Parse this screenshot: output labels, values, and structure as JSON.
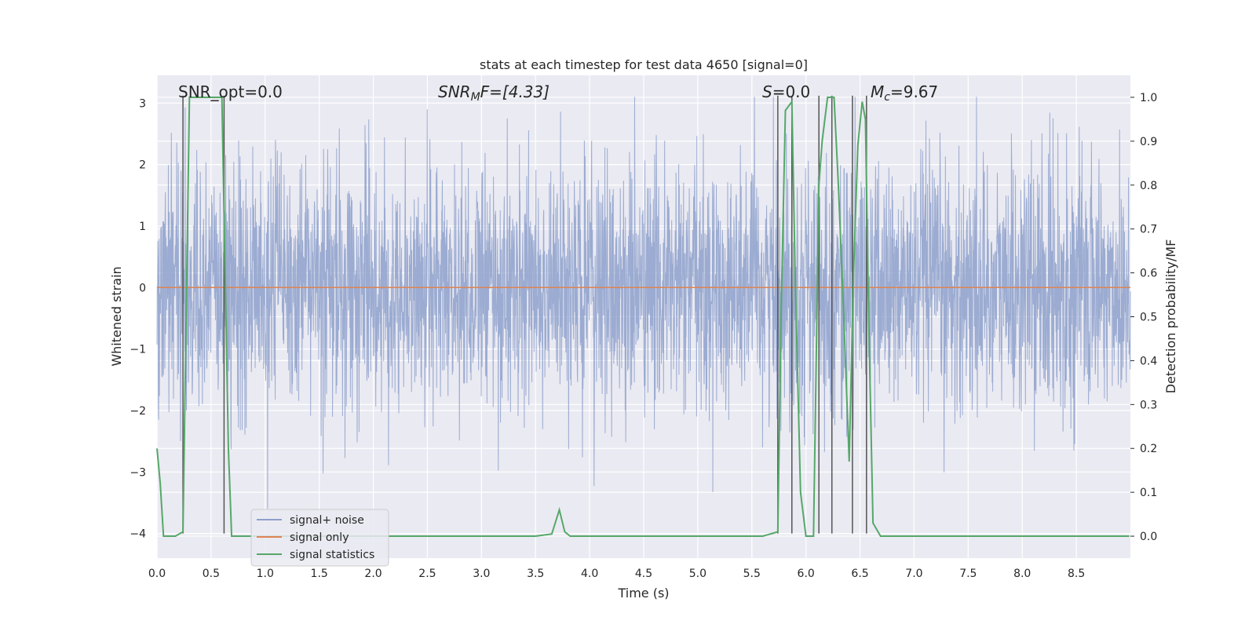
{
  "chart_data": {
    "type": "line",
    "title": "stats at each timestep for test data 4650 [signal=0]",
    "xlabel": "Time (s)",
    "ylabel": "Whitened strain",
    "y2label": "Detection probability/MF",
    "xlim": [
      0,
      9.0
    ],
    "ylim": [
      -4.4,
      3.45
    ],
    "y2lim": [
      -0.05,
      1.05
    ],
    "xticks": [
      0.0,
      0.5,
      1.0,
      1.5,
      2.0,
      2.5,
      3.0,
      3.5,
      4.0,
      4.5,
      5.0,
      5.5,
      6.0,
      6.5,
      7.0,
      7.5,
      8.0,
      8.5
    ],
    "yticks": [
      3,
      2,
      1,
      0,
      -1,
      -2,
      -3,
      -4
    ],
    "y2ticks": [
      1.0,
      0.9,
      0.8,
      0.7,
      0.6,
      0.5,
      0.4,
      0.3,
      0.2,
      0.1,
      0.0
    ],
    "grid": true,
    "legend_position": "lower-left",
    "annotations": {
      "snr_opt": "SNR_opt=0.0",
      "snr_mf_main": "SNR",
      "snr_mf_sub": "M",
      "snr_mf_rest": "F=[4.33]",
      "s_stat": "=0.0",
      "s_symbol": "S",
      "mc_main": "M",
      "mc_sub": "c",
      "mc_rest": "=9.67"
    },
    "noise": {
      "description_free": true,
      "sigma": 1.0,
      "clip": [
        -3.7,
        3.1
      ],
      "n_samples": 3600
    },
    "vlines_x": [
      0.24,
      0.62,
      5.74,
      5.87,
      6.12,
      6.24,
      6.43,
      6.56
    ],
    "series": [
      {
        "name": "signal+ noise",
        "color": "#8da0cb"
      },
      {
        "name": "signal only",
        "color": "#dd8452",
        "y": 0
      },
      {
        "name": "signal statistics",
        "color": "#55a868",
        "x": [
          0.0,
          0.03,
          0.06,
          0.17,
          0.24,
          0.3,
          0.38,
          0.5,
          0.6,
          0.63,
          0.66,
          0.69,
          1.0,
          2.0,
          3.0,
          3.5,
          3.65,
          3.72,
          3.77,
          3.82,
          4.0,
          5.0,
          5.6,
          5.74,
          5.77,
          5.81,
          5.87,
          5.9,
          5.95,
          6.0,
          6.07,
          6.12,
          6.15,
          6.2,
          6.26,
          6.3,
          6.35,
          6.4,
          6.44,
          6.48,
          6.52,
          6.55,
          6.58,
          6.62,
          6.69,
          7.0,
          8.0,
          8.99
        ],
        "y": [
          0.2,
          0.12,
          0.0,
          0.0,
          0.01,
          1.0,
          1.0,
          1.0,
          1.0,
          0.6,
          0.2,
          0.0,
          0.0,
          0.0,
          0.0,
          0.0,
          0.005,
          0.06,
          0.01,
          0.0,
          0.0,
          0.0,
          0.0,
          0.01,
          0.5,
          0.97,
          0.99,
          0.6,
          0.1,
          0.0,
          0.0,
          0.8,
          0.9,
          1.0,
          1.0,
          0.8,
          0.5,
          0.17,
          0.6,
          0.89,
          0.99,
          0.95,
          0.5,
          0.03,
          0.0,
          0.0,
          0.0,
          0.0
        ]
      }
    ]
  }
}
